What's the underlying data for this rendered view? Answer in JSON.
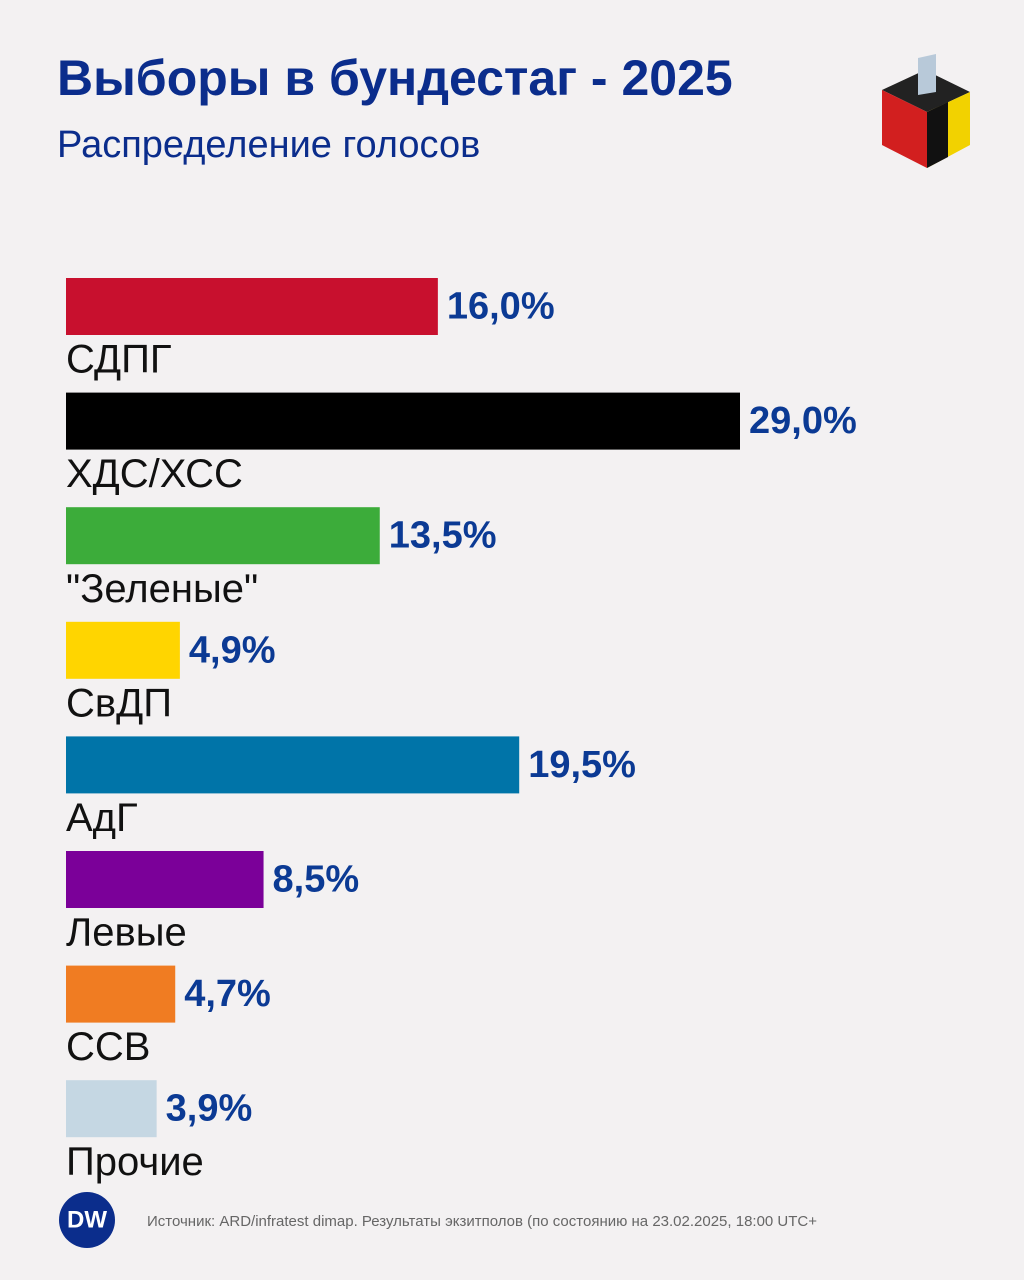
{
  "chart_data": {
    "type": "bar",
    "orientation": "horizontal",
    "title": "Выборы в бундестаг - 2025",
    "subtitle": "Распределение голосов",
    "categories": [
      "СДПГ",
      "ХДС/ХСС",
      "\"Зеленые\"",
      "СвДП",
      "АдГ",
      "Левые",
      "ССВ",
      "Прочие"
    ],
    "values": [
      16.0,
      29.0,
      13.5,
      4.9,
      19.5,
      8.5,
      4.7,
      3.9
    ],
    "value_labels": [
      "16,0%",
      "29,0%",
      "13,5%",
      "4,9%",
      "19,5%",
      "8,5%",
      "4,7%",
      "3,9%"
    ],
    "colors": [
      "#c8102e",
      "#000000",
      "#3cac3a",
      "#ffd500",
      "#0074a8",
      "#7b0099",
      "#f07c22",
      "#c5d7e3"
    ],
    "source": "Источник: ARD/infratest dimap. Результаты экзитполов (по состоянию на 23.02.2025, 18:00 UTC+",
    "logo": "DW"
  }
}
